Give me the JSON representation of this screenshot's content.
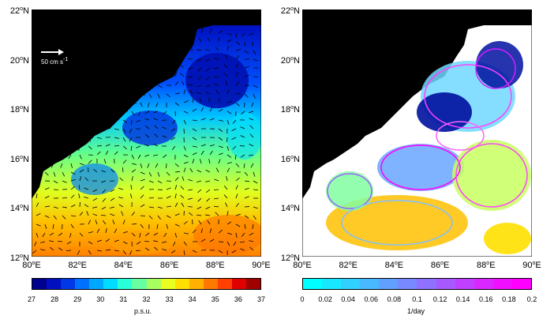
{
  "left_panel": {
    "lat_ticks": [
      "12",
      "14",
      "16",
      "18",
      "20",
      "22"
    ],
    "lat_suffix": "N",
    "lon_ticks": [
      "80",
      "82",
      "84",
      "86",
      "88",
      "90"
    ],
    "lon_suffix": "E",
    "degree_mark": "o",
    "scale_arrow_label_main": "50 cm s",
    "scale_arrow_label_exp": "-1",
    "colorbar": {
      "ticks": [
        "27",
        "28",
        "29",
        "30",
        "31",
        "32",
        "33",
        "34",
        "35",
        "36",
        "37"
      ],
      "unit": "p.s.u.",
      "colors": [
        "#00008f",
        "#0010c0",
        "#0038e8",
        "#0070ff",
        "#00a8ff",
        "#00dcff",
        "#28ffd8",
        "#68ffa0",
        "#a8ff60",
        "#e8ff20",
        "#ffe000",
        "#ffb000",
        "#ff7800",
        "#ff4000",
        "#e00000",
        "#a00000"
      ]
    }
  },
  "right_panel": {
    "lat_ticks": [
      "12",
      "14",
      "16",
      "18",
      "20",
      "22"
    ],
    "lat_suffix": "N",
    "lon_ticks": [
      "80",
      "82",
      "84",
      "86",
      "88",
      "90"
    ],
    "lon_suffix": "E",
    "degree_mark": "o",
    "colorbar": {
      "ticks": [
        "0",
        "0.02",
        "0.04",
        "0.06",
        "0.08",
        "0.1",
        "0.12",
        "0.14",
        "0.16",
        "0.18",
        "0.2"
      ],
      "unit": "1/day",
      "colors": [
        "#00ffff",
        "#18e8ff",
        "#30d0ff",
        "#48b8ff",
        "#60a0ff",
        "#7888ff",
        "#9070ff",
        "#a858ff",
        "#c040ff",
        "#d828ff",
        "#f010ff",
        "#ff00ff"
      ]
    }
  }
}
